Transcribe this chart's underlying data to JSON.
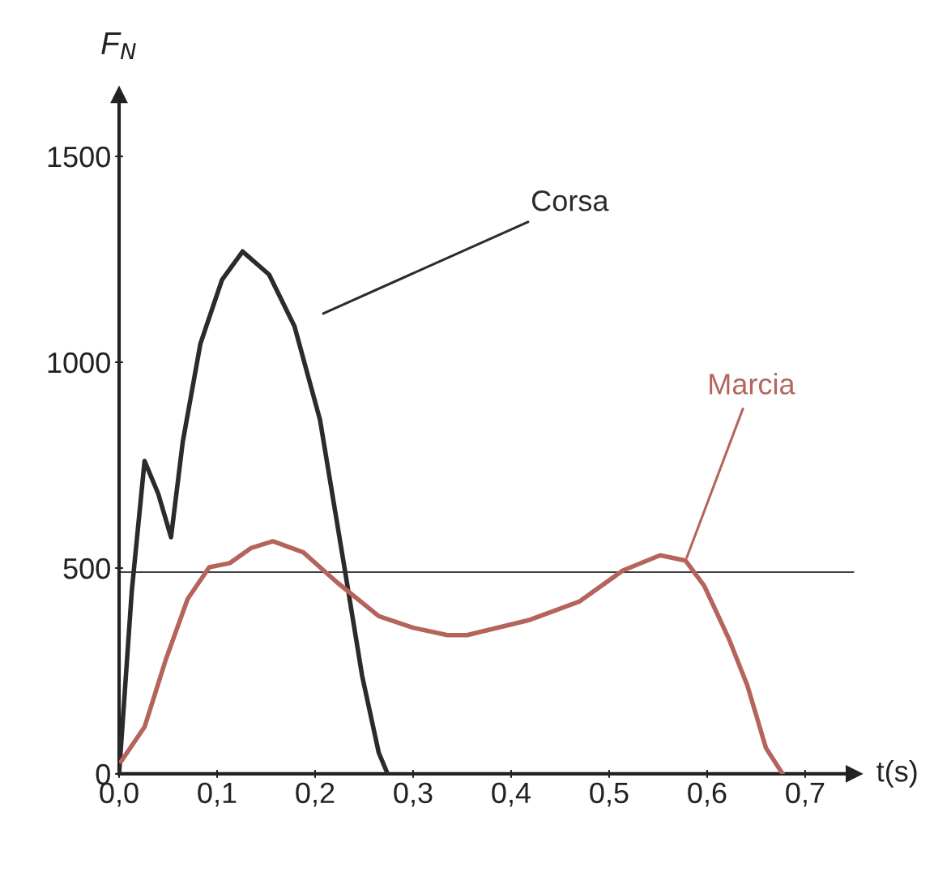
{
  "chart_data": {
    "type": "line",
    "xlabel": "t(s)",
    "ylabel": "F$_{N}$",
    "xlim": [
      0,
      0.75
    ],
    "ylim": [
      0,
      1650
    ],
    "xticks": [
      {
        "value": 0,
        "label": "0,0"
      },
      {
        "value": 0.1,
        "label": "0,1"
      },
      {
        "value": 0.2,
        "label": "0,2"
      },
      {
        "value": 0.3,
        "label": "0,3"
      },
      {
        "value": 0.4,
        "label": "0,4"
      },
      {
        "value": 0.5,
        "label": "0,5"
      },
      {
        "value": 0.6,
        "label": "0,6"
      },
      {
        "value": 0.7,
        "label": "0,7"
      }
    ],
    "yticks": [
      0,
      500,
      1000,
      1500
    ],
    "grid": false,
    "legend": false,
    "marker": "none",
    "line_style": "solid",
    "ref_lines": [
      {
        "axis": "y",
        "value": 490,
        "color": "#000000"
      }
    ],
    "series": [
      {
        "name": "Corsa",
        "color": "#2b2b2b",
        "x": [
          0,
          0.013,
          0.026,
          0.04,
          0.053,
          0.065,
          0.083,
          0.105,
          0.126,
          0.153,
          0.179,
          0.205,
          0.231,
          0.248,
          0.265,
          0.274
        ],
        "values": [
          0,
          445,
          760,
          680,
          575,
          807,
          1045,
          1200,
          1269,
          1213,
          1087,
          860,
          486,
          238,
          51,
          0
        ]
      },
      {
        "name": "Marcia",
        "color": "#b5645c",
        "x": [
          0.002,
          0.026,
          0.048,
          0.07,
          0.092,
          0.113,
          0.135,
          0.157,
          0.188,
          0.222,
          0.265,
          0.3,
          0.335,
          0.355,
          0.419,
          0.47,
          0.514,
          0.552,
          0.578,
          0.597,
          0.622,
          0.641,
          0.66,
          0.677
        ],
        "values": [
          30,
          114,
          280,
          425,
          502,
          512,
          549,
          565,
          538,
          466,
          383,
          355,
          337,
          337,
          374,
          419,
          494,
          531,
          518,
          457,
          329,
          215,
          63,
          0
        ]
      }
    ]
  }
}
